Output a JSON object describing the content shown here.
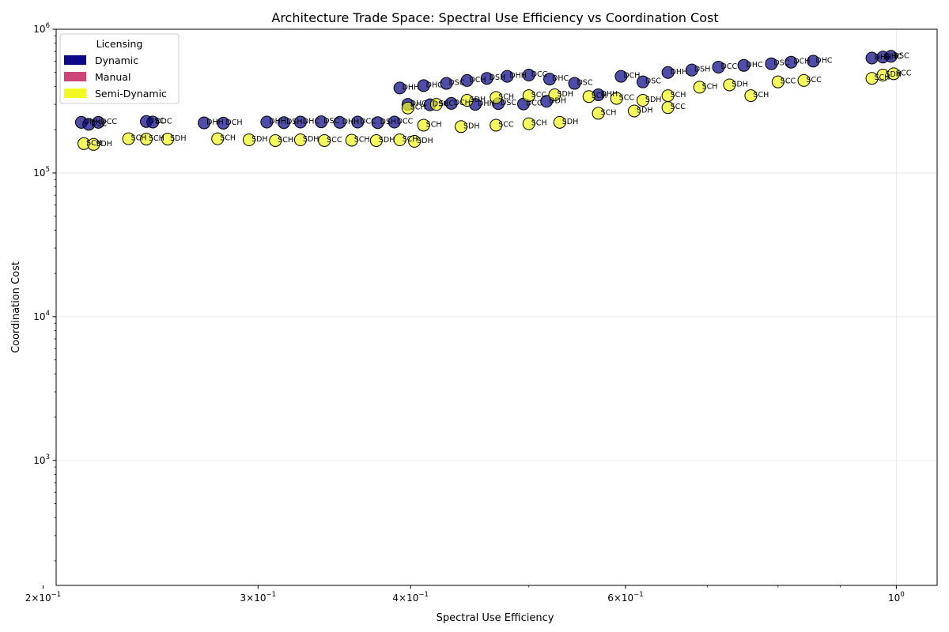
{
  "chart_data": {
    "type": "scatter",
    "title": "Architecture Trade Space: Spectral Use Efficiency vs Coordination Cost",
    "xlabel": "Spectral Use Efficiency",
    "ylabel": "Coordination Cost",
    "xscale": "log",
    "yscale": "log",
    "xlim": [
      0.205,
      1.08
    ],
    "ylim": [
      135,
      1000000
    ],
    "grid": true,
    "x_ticks": [
      {
        "value": 0.2,
        "base": "2×10",
        "exp": "−1"
      },
      {
        "value": 0.3,
        "base": "3×10",
        "exp": "−1"
      },
      {
        "value": 0.4,
        "base": "4×10",
        "exp": "−1"
      },
      {
        "value": 0.6,
        "base": "6×10",
        "exp": "−1"
      },
      {
        "value": 1.0,
        "base": "10",
        "exp": "0"
      }
    ],
    "y_ticks": [
      {
        "value": 1000,
        "base": "10",
        "exp": "3"
      },
      {
        "value": 10000,
        "base": "10",
        "exp": "4"
      },
      {
        "value": 100000,
        "base": "10",
        "exp": "5"
      },
      {
        "value": 1000000,
        "base": "10",
        "exp": "6"
      }
    ],
    "legend": {
      "title": "Licensing",
      "position": "upper left",
      "entries": [
        {
          "label": "Dynamic",
          "color": "#0d0887"
        },
        {
          "label": "Manual",
          "color": "#cc4778"
        },
        {
          "label": "Semi-Dynamic",
          "color": "#f0f921"
        }
      ]
    },
    "series": [
      {
        "name": "Dynamic",
        "color": "#0d0887",
        "points": [
          {
            "x": 0.215,
            "y": 225000,
            "label": "DHH"
          },
          {
            "x": 0.218,
            "y": 218000,
            "label": "DSC"
          },
          {
            "x": 0.222,
            "y": 225000,
            "label": "DCC"
          },
          {
            "x": 0.243,
            "y": 228000,
            "label": "DSC"
          },
          {
            "x": 0.246,
            "y": 226000,
            "label": "DDC"
          },
          {
            "x": 0.271,
            "y": 223000,
            "label": "DHH"
          },
          {
            "x": 0.281,
            "y": 222000,
            "label": "DCH"
          },
          {
            "x": 0.305,
            "y": 226000,
            "label": "DHH"
          },
          {
            "x": 0.315,
            "y": 224000,
            "label": "DSH"
          },
          {
            "x": 0.325,
            "y": 226000,
            "label": "DHC"
          },
          {
            "x": 0.338,
            "y": 227000,
            "label": "DSC"
          },
          {
            "x": 0.35,
            "y": 225000,
            "label": "DHH"
          },
          {
            "x": 0.362,
            "y": 226000,
            "label": "DCC"
          },
          {
            "x": 0.376,
            "y": 224000,
            "label": "DSH"
          },
          {
            "x": 0.388,
            "y": 226000,
            "label": "DCC"
          },
          {
            "x": 0.398,
            "y": 300000,
            "label": "DHC"
          },
          {
            "x": 0.415,
            "y": 298000,
            "label": "DSH"
          },
          {
            "x": 0.432,
            "y": 305000,
            "label": "DCH"
          },
          {
            "x": 0.452,
            "y": 300000,
            "label": "DHH"
          },
          {
            "x": 0.472,
            "y": 304000,
            "label": "DSC"
          },
          {
            "x": 0.495,
            "y": 302000,
            "label": "DCC"
          },
          {
            "x": 0.517,
            "y": 315000,
            "label": "DDH"
          },
          {
            "x": 0.392,
            "y": 390000,
            "label": "DHH"
          },
          {
            "x": 0.41,
            "y": 405000,
            "label": "DHC"
          },
          {
            "x": 0.428,
            "y": 420000,
            "label": "DSC"
          },
          {
            "x": 0.445,
            "y": 440000,
            "label": "DCH"
          },
          {
            "x": 0.462,
            "y": 455000,
            "label": "DSH"
          },
          {
            "x": 0.48,
            "y": 470000,
            "label": "DHH"
          },
          {
            "x": 0.5,
            "y": 480000,
            "label": "DCC"
          },
          {
            "x": 0.52,
            "y": 450000,
            "label": "DHC"
          },
          {
            "x": 0.545,
            "y": 420000,
            "label": "DSC"
          },
          {
            "x": 0.57,
            "y": 350000,
            "label": "DHH"
          },
          {
            "x": 0.595,
            "y": 470000,
            "label": "DCH"
          },
          {
            "x": 0.62,
            "y": 430000,
            "label": "DSC"
          },
          {
            "x": 0.65,
            "y": 500000,
            "label": "DHH"
          },
          {
            "x": 0.68,
            "y": 520000,
            "label": "DSH"
          },
          {
            "x": 0.715,
            "y": 545000,
            "label": "DCC"
          },
          {
            "x": 0.75,
            "y": 560000,
            "label": "DHC"
          },
          {
            "x": 0.79,
            "y": 575000,
            "label": "DSC"
          },
          {
            "x": 0.82,
            "y": 590000,
            "label": "DCH"
          },
          {
            "x": 0.855,
            "y": 600000,
            "label": "DHC"
          },
          {
            "x": 0.955,
            "y": 630000,
            "label": "DHH"
          },
          {
            "x": 0.975,
            "y": 640000,
            "label": "DHC"
          },
          {
            "x": 0.99,
            "y": 648000,
            "label": "DSC"
          }
        ]
      },
      {
        "name": "Semi-Dynamic",
        "color": "#f0f921",
        "points": [
          {
            "x": 0.216,
            "y": 160000,
            "label": "SCH"
          },
          {
            "x": 0.22,
            "y": 158000,
            "label": "SDH"
          },
          {
            "x": 0.235,
            "y": 173000,
            "label": "SCH"
          },
          {
            "x": 0.243,
            "y": 172000,
            "label": "SCH"
          },
          {
            "x": 0.253,
            "y": 172000,
            "label": "SDH"
          },
          {
            "x": 0.278,
            "y": 173000,
            "label": "SCH"
          },
          {
            "x": 0.295,
            "y": 170000,
            "label": "SDH"
          },
          {
            "x": 0.31,
            "y": 168000,
            "label": "SCH"
          },
          {
            "x": 0.325,
            "y": 170000,
            "label": "SDH"
          },
          {
            "x": 0.34,
            "y": 168000,
            "label": "SCC"
          },
          {
            "x": 0.358,
            "y": 169000,
            "label": "SCH"
          },
          {
            "x": 0.375,
            "y": 168000,
            "label": "SDH"
          },
          {
            "x": 0.392,
            "y": 170000,
            "label": "SCH"
          },
          {
            "x": 0.403,
            "y": 166000,
            "label": "SDH"
          },
          {
            "x": 0.398,
            "y": 283000,
            "label": "SCH"
          },
          {
            "x": 0.42,
            "y": 300000,
            "label": "SCC"
          },
          {
            "x": 0.445,
            "y": 320000,
            "label": "SDH"
          },
          {
            "x": 0.47,
            "y": 335000,
            "label": "SCH"
          },
          {
            "x": 0.5,
            "y": 345000,
            "label": "SCC"
          },
          {
            "x": 0.525,
            "y": 350000,
            "label": "SDH"
          },
          {
            "x": 0.56,
            "y": 340000,
            "label": "SCH"
          },
          {
            "x": 0.59,
            "y": 330000,
            "label": "SCC"
          },
          {
            "x": 0.62,
            "y": 320000,
            "label": "SDH"
          },
          {
            "x": 0.65,
            "y": 345000,
            "label": "SCH"
          },
          {
            "x": 0.41,
            "y": 215000,
            "label": "SCH"
          },
          {
            "x": 0.44,
            "y": 210000,
            "label": "SDH"
          },
          {
            "x": 0.47,
            "y": 215000,
            "label": "SCC"
          },
          {
            "x": 0.5,
            "y": 220000,
            "label": "SCH"
          },
          {
            "x": 0.53,
            "y": 225000,
            "label": "SDH"
          },
          {
            "x": 0.57,
            "y": 260000,
            "label": "SCH"
          },
          {
            "x": 0.61,
            "y": 270000,
            "label": "SDH"
          },
          {
            "x": 0.65,
            "y": 285000,
            "label": "SCC"
          },
          {
            "x": 0.69,
            "y": 395000,
            "label": "SCH"
          },
          {
            "x": 0.73,
            "y": 410000,
            "label": "SDH"
          },
          {
            "x": 0.76,
            "y": 345000,
            "label": "SCH"
          },
          {
            "x": 0.8,
            "y": 430000,
            "label": "SCC"
          },
          {
            "x": 0.84,
            "y": 440000,
            "label": "SCC"
          },
          {
            "x": 0.955,
            "y": 455000,
            "label": "SCH"
          },
          {
            "x": 0.975,
            "y": 480000,
            "label": "SDH"
          },
          {
            "x": 0.995,
            "y": 490000,
            "label": "SCC"
          }
        ]
      }
    ]
  }
}
